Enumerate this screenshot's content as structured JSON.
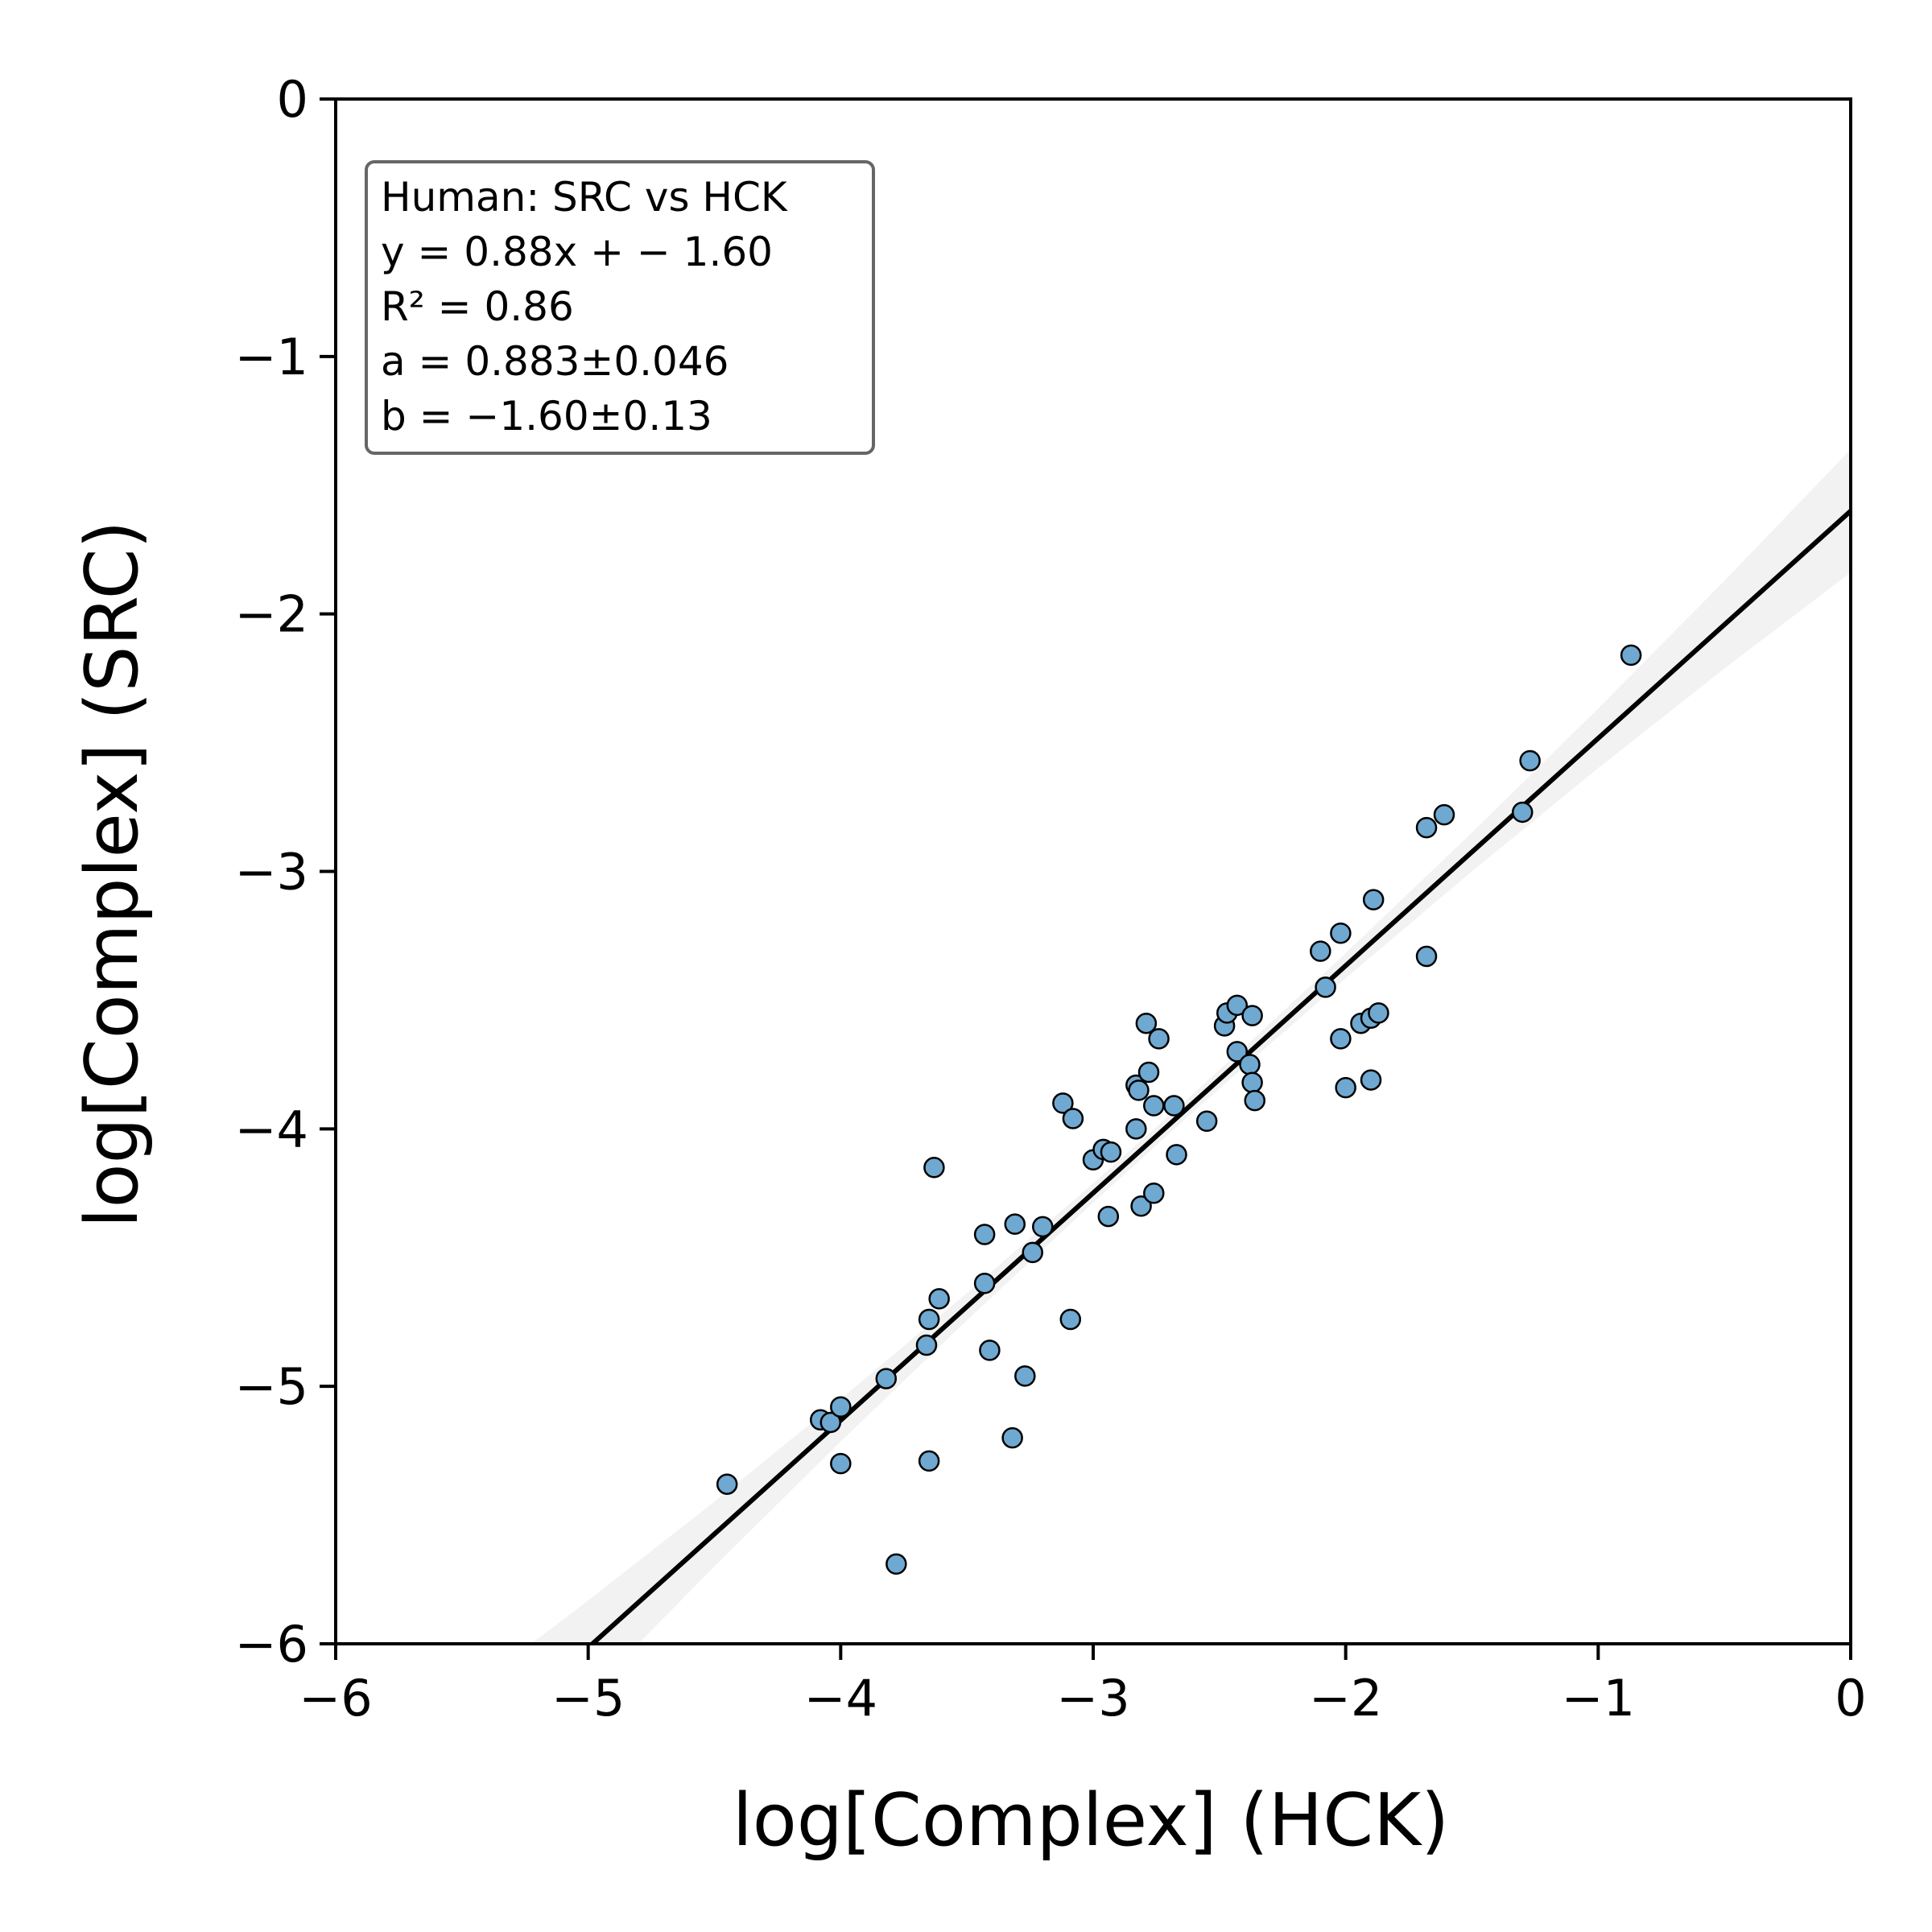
{
  "chart_data": {
    "type": "scatter",
    "xlabel": "log[Complex] (HCK)",
    "ylabel": "log[Complex] (SRC)",
    "xlim": [
      -6,
      0
    ],
    "ylim": [
      -6,
      0
    ],
    "xticks": [
      "−6",
      "−5",
      "−4",
      "−3",
      "−2",
      "−1",
      "0"
    ],
    "yticks": [
      "0",
      "−1",
      "−2",
      "−3",
      "−4",
      "−5",
      "−6"
    ],
    "xtick_values": [
      -6,
      -5,
      -4,
      -3,
      -2,
      -1,
      0
    ],
    "ytick_values": [
      0,
      -1,
      -2,
      -3,
      -4,
      -5,
      -6
    ],
    "grid": false,
    "annotation": {
      "position": "top-left",
      "lines": [
        "Human: SRC vs HCK",
        "y = 0.88x + − 1.60",
        "R² = 0.86",
        "a = 0.883±0.046",
        "b = −1.60±0.13"
      ]
    },
    "fit": {
      "slope": 0.883,
      "intercept": -1.6,
      "color": "#000000"
    },
    "confidence_band": {
      "color": "#eeeeee"
    },
    "point_color": "#6fa8d0",
    "point_edge_color": "#000000",
    "points": [
      [
        -4.45,
        -5.38
      ],
      [
        -4.08,
        -5.13
      ],
      [
        -4.04,
        -5.14
      ],
      [
        -4.0,
        -5.08
      ],
      [
        -4.0,
        -5.3
      ],
      [
        -3.82,
        -4.97
      ],
      [
        -3.78,
        -5.69
      ],
      [
        -3.66,
        -4.84
      ],
      [
        -3.65,
        -4.74
      ],
      [
        -3.65,
        -5.29
      ],
      [
        -3.63,
        -4.15
      ],
      [
        -3.61,
        -4.66
      ],
      [
        -3.43,
        -4.41
      ],
      [
        -3.43,
        -4.6
      ],
      [
        -3.41,
        -4.86
      ],
      [
        -3.31,
        -4.37
      ],
      [
        -3.32,
        -5.2
      ],
      [
        -3.27,
        -4.96
      ],
      [
        -3.24,
        -4.48
      ],
      [
        -3.2,
        -4.38
      ],
      [
        -3.12,
        -3.9
      ],
      [
        -3.08,
        -3.96
      ],
      [
        -3.09,
        -4.74
      ],
      [
        -3.0,
        -4.12
      ],
      [
        -2.96,
        -4.08
      ],
      [
        -2.93,
        -4.09
      ],
      [
        -2.94,
        -4.34
      ],
      [
        -2.83,
        -3.83
      ],
      [
        -2.82,
        -3.85
      ],
      [
        -2.83,
        -4.0
      ],
      [
        -2.81,
        -4.3
      ],
      [
        -2.79,
        -3.59
      ],
      [
        -2.78,
        -3.78
      ],
      [
        -2.76,
        -3.91
      ],
      [
        -2.76,
        -4.25
      ],
      [
        -2.74,
        -3.65
      ],
      [
        -2.68,
        -3.91
      ],
      [
        -2.67,
        -4.1
      ],
      [
        -2.55,
        -3.97
      ],
      [
        -2.48,
        -3.6
      ],
      [
        -2.47,
        -3.55
      ],
      [
        -2.43,
        -3.52
      ],
      [
        -2.43,
        -3.7
      ],
      [
        -2.38,
        -3.75
      ],
      [
        -2.37,
        -3.56
      ],
      [
        -2.37,
        -3.82
      ],
      [
        -2.36,
        -3.89
      ],
      [
        -2.1,
        -3.31
      ],
      [
        -2.08,
        -3.45
      ],
      [
        -2.02,
        -3.24
      ],
      [
        -2.02,
        -3.65
      ],
      [
        -2.0,
        -3.84
      ],
      [
        -1.94,
        -3.59
      ],
      [
        -1.9,
        -3.57
      ],
      [
        -1.89,
        -3.11
      ],
      [
        -1.9,
        -3.81
      ],
      [
        -1.87,
        -3.55
      ],
      [
        -1.68,
        -2.83
      ],
      [
        -1.68,
        -3.33
      ],
      [
        -1.61,
        -2.78
      ],
      [
        -1.3,
        -2.77
      ],
      [
        -1.27,
        -2.57
      ],
      [
        -0.87,
        -2.16
      ]
    ]
  }
}
